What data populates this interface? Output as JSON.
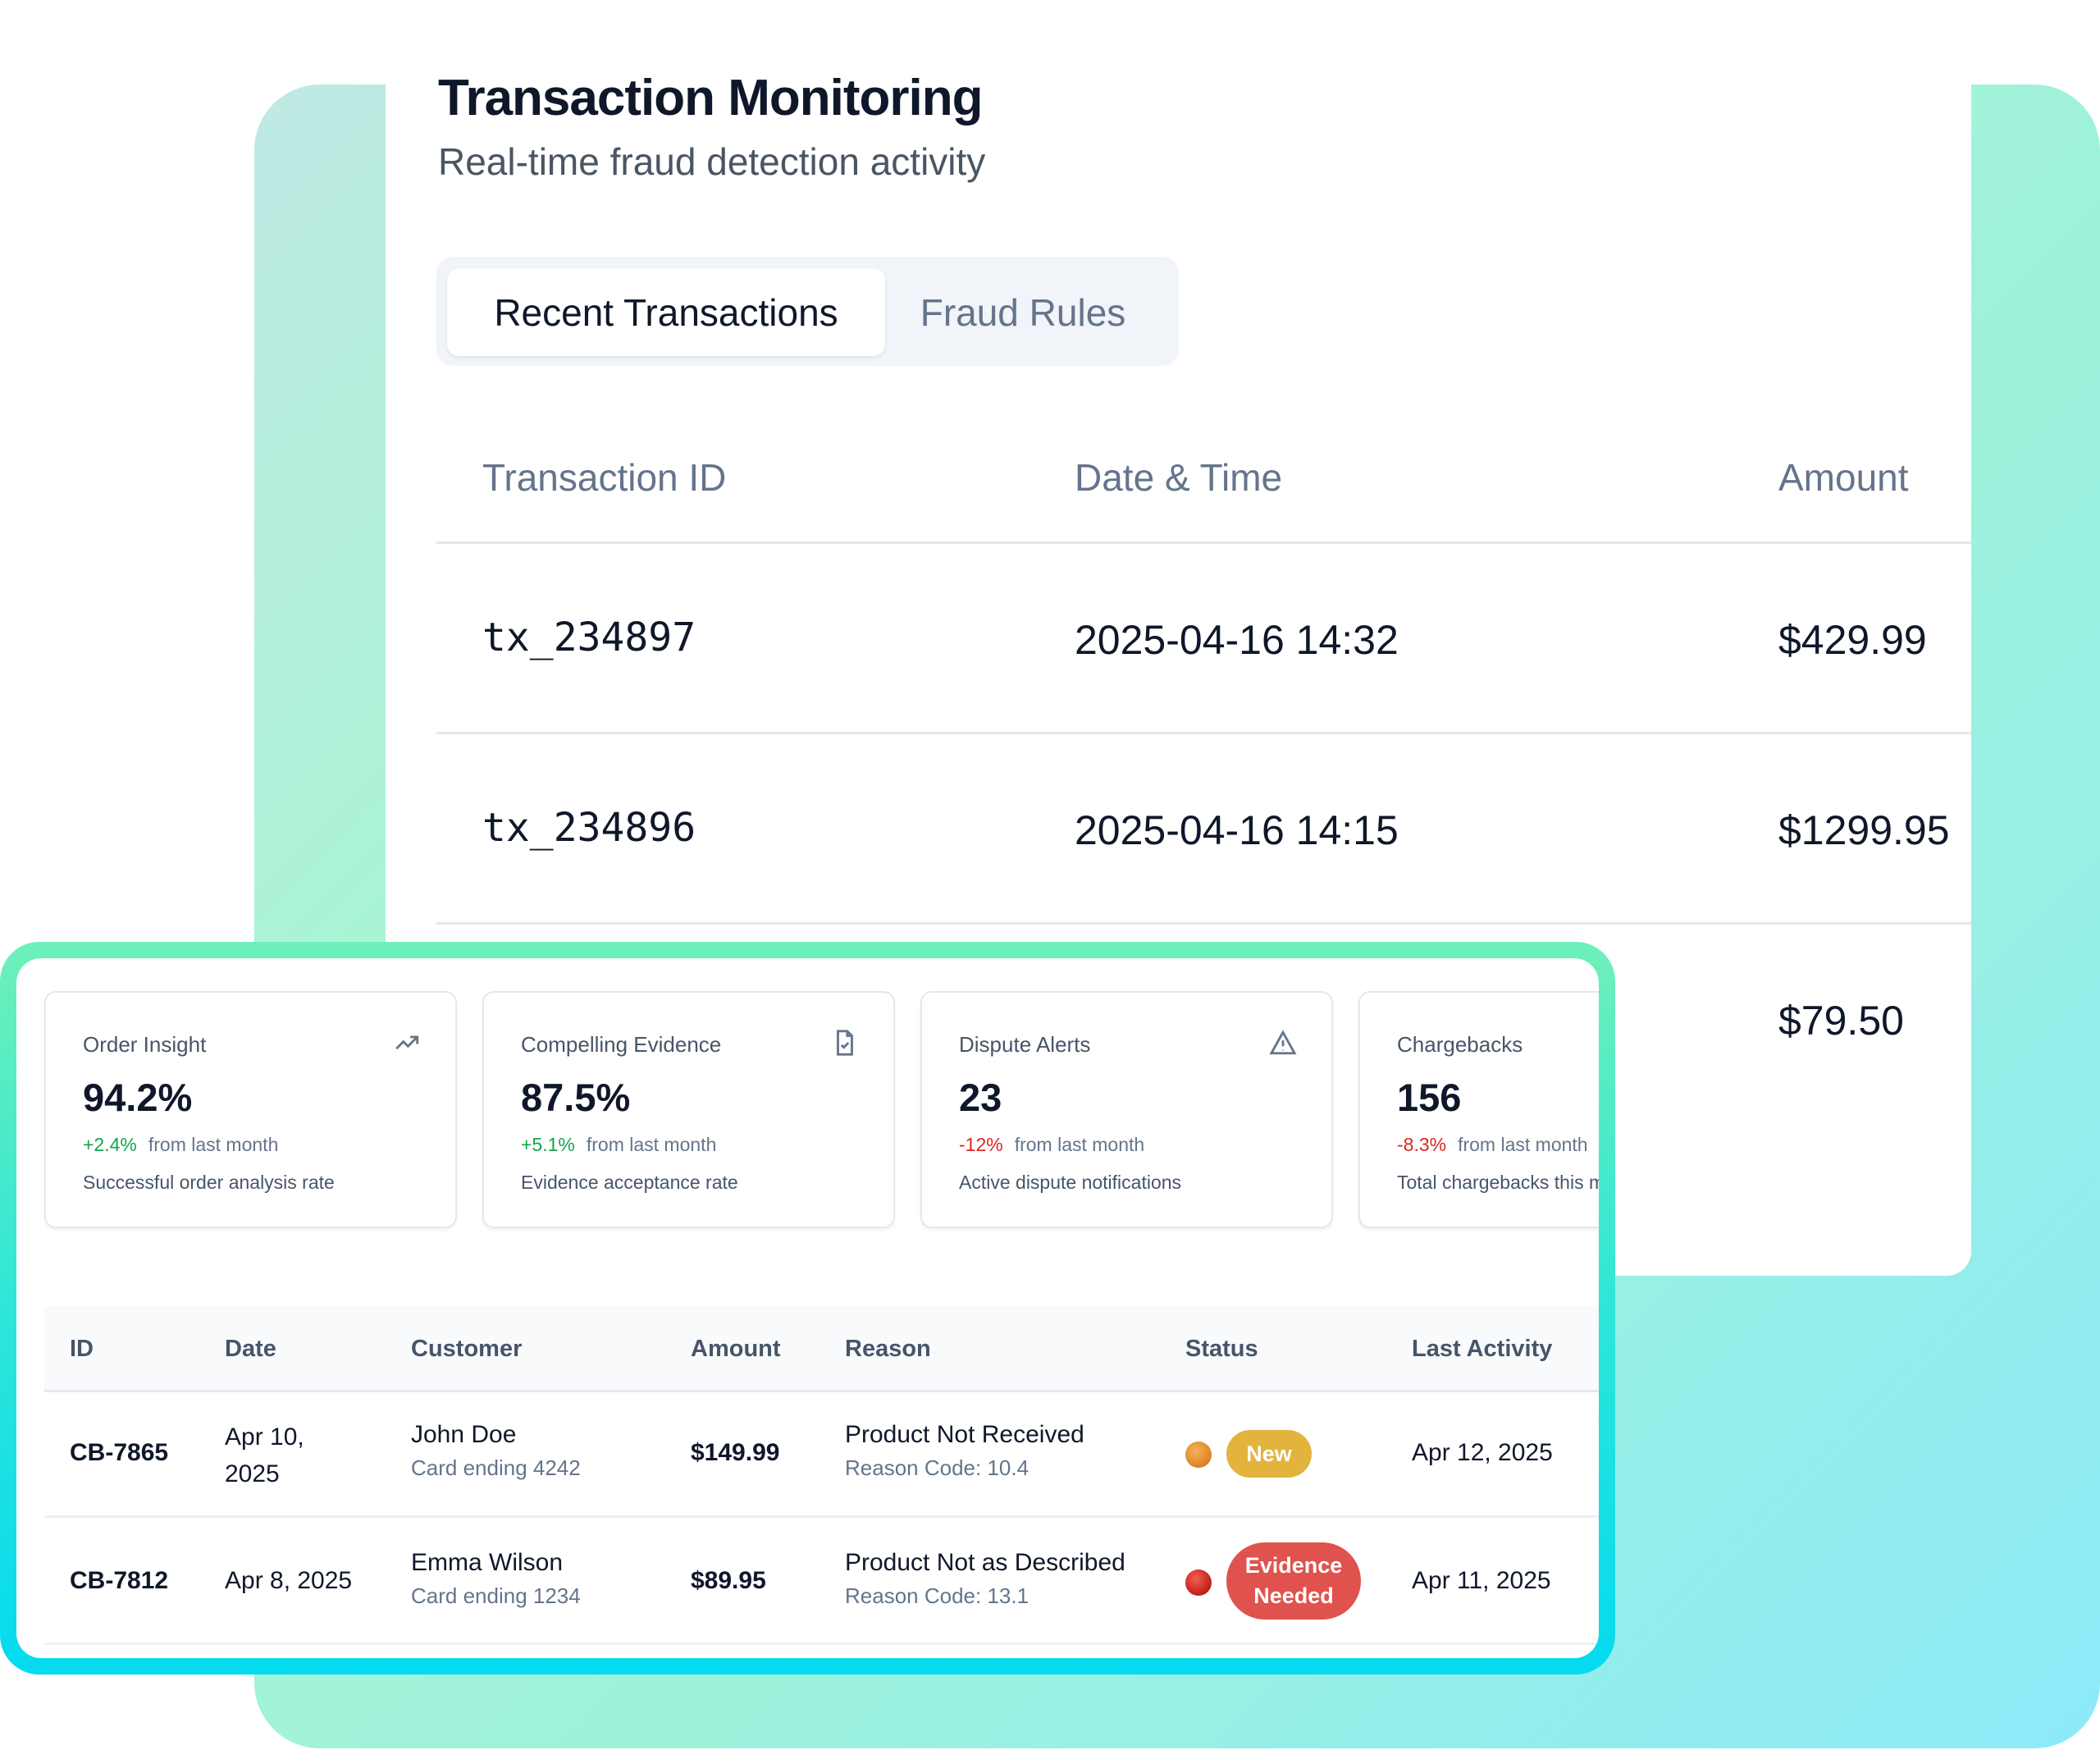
{
  "header": {
    "title": "Transaction Monitoring",
    "subtitle": "Real-time fraud detection activity"
  },
  "tabs": [
    {
      "label": "Recent Transactions",
      "active": true
    },
    {
      "label": "Fraud Rules",
      "active": false
    }
  ],
  "transactions": {
    "columns": [
      "Transaction ID",
      "Date & Time",
      "Amount"
    ],
    "rows": [
      {
        "id": "tx_234897",
        "datetime": "2025-04-16 14:32",
        "amount": "$429.99"
      },
      {
        "id": "tx_234896",
        "datetime": "2025-04-16 14:15",
        "amount": "$1299.95"
      },
      {
        "amount": "$79.50"
      }
    ]
  },
  "stats": [
    {
      "title": "Order Insight",
      "value": "94.2%",
      "delta": "+2.4%",
      "delta_suffix": "from last month",
      "desc": "Successful order analysis rate",
      "icon": "trending-up-icon",
      "trend": "up"
    },
    {
      "title": "Compelling Evidence",
      "value": "87.5%",
      "delta": "+5.1%",
      "delta_suffix": "from last month",
      "desc": "Evidence acceptance rate",
      "icon": "file-check-icon",
      "trend": "up"
    },
    {
      "title": "Dispute Alerts",
      "value": "23",
      "delta": "-12%",
      "delta_suffix": "from last month",
      "desc": "Active dispute notifications",
      "icon": "alert-triangle-icon",
      "trend": "down"
    },
    {
      "title": "Chargebacks",
      "value": "156",
      "delta": "-8.3%",
      "delta_suffix": "from last month",
      "desc": "Total chargebacks this m",
      "trend": "down"
    }
  ],
  "chargebacks": {
    "columns": [
      "ID",
      "Date",
      "Customer",
      "Amount",
      "Reason",
      "Status",
      "Last Activity"
    ],
    "rows": [
      {
        "id": "CB-7865",
        "date": "Apr 10, 2025",
        "customer": "John Doe",
        "card": "Card ending 4242",
        "amount": "$149.99",
        "reason": "Product Not Received",
        "code": "Reason Code: 10.4",
        "status": "New",
        "status_color": "#e2b43d",
        "dot_color": "#e08a2a",
        "last": "Apr 12, 2025"
      },
      {
        "id": "CB-7812",
        "date": "Apr 8, 2025",
        "customer": "Emma Wilson",
        "card": "Card ending 1234",
        "amount": "$89.95",
        "reason": "Product Not as Described",
        "code": "Reason Code: 13.1",
        "status": "Evidence Needed",
        "status_color": "#e0524d",
        "dot_color": "#c8261e",
        "last": "Apr 11, 2025"
      }
    ]
  }
}
